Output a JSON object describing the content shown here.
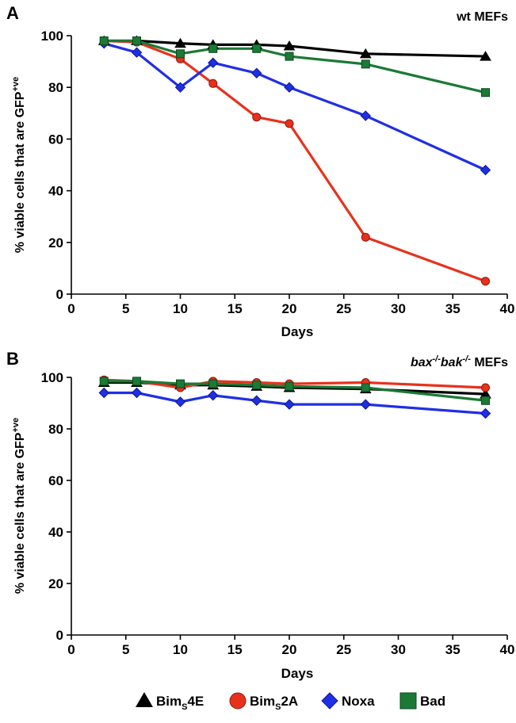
{
  "colors": {
    "black": "#000000",
    "red": "#e8311c",
    "blue": "#1f2fe6",
    "green": "#1b7a35"
  },
  "chart_data": [
    {
      "type": "line",
      "panel_letter": "A",
      "title": "wt MEFs",
      "xlabel": "Days",
      "ylabel": {
        "main": "% viable cells that are GFP",
        "superscript": "+ve"
      },
      "xlim": [
        0,
        40
      ],
      "ylim": [
        0,
        100
      ],
      "xticks": [
        0,
        5,
        10,
        15,
        20,
        25,
        30,
        35,
        40
      ],
      "yticks": [
        0,
        20,
        40,
        60,
        80,
        100
      ],
      "grid": false,
      "x": [
        3,
        6,
        10,
        13,
        17,
        20,
        27,
        38
      ],
      "series": [
        {
          "name": "Bim4E",
          "color": "#000000",
          "marker": "triangle",
          "values": [
            98,
            98,
            97,
            96.5,
            96.5,
            96,
            93,
            92
          ]
        },
        {
          "name": "Bim2A",
          "color": "#e8311c",
          "marker": "circle",
          "values": [
            98,
            97.5,
            91,
            81.5,
            68.5,
            66,
            22,
            5
          ]
        },
        {
          "name": "Noxa",
          "color": "#1f2fe6",
          "marker": "diamond",
          "values": [
            97,
            93.5,
            80,
            89.5,
            85.5,
            80,
            69,
            48
          ]
        },
        {
          "name": "Bad",
          "color": "#1b7a35",
          "marker": "square",
          "values": [
            98,
            98,
            93,
            95,
            95,
            92,
            89,
            78
          ]
        }
      ]
    },
    {
      "type": "line",
      "panel_letter": "B",
      "title": {
        "bax": "bax",
        "bax_sup": "-/-",
        "bak": "bak",
        "bak_sup": "-/-",
        "rest": " MEFs"
      },
      "xlabel": "Days",
      "ylabel": {
        "main": "% viable cells that are GFP",
        "superscript": "+ve"
      },
      "xlim": [
        0,
        40
      ],
      "ylim": [
        0,
        100
      ],
      "xticks": [
        0,
        5,
        10,
        15,
        20,
        25,
        30,
        35,
        40
      ],
      "yticks": [
        0,
        20,
        40,
        60,
        80,
        100
      ],
      "grid": false,
      "x": [
        3,
        6,
        10,
        13,
        17,
        20,
        27,
        38
      ],
      "series": [
        {
          "name": "Bim4E",
          "color": "#000000",
          "marker": "triangle",
          "values": [
            98,
            98,
            97,
            97,
            96.5,
            96,
            95.5,
            93.5
          ]
        },
        {
          "name": "Bim2A",
          "color": "#e8311c",
          "marker": "circle",
          "values": [
            99,
            98.5,
            96,
            98.5,
            98,
            97.5,
            98,
            96
          ]
        },
        {
          "name": "Noxa",
          "color": "#1f2fe6",
          "marker": "diamond",
          "values": [
            94,
            94,
            90.5,
            93,
            91,
            89.5,
            89.5,
            86
          ]
        },
        {
          "name": "Bad",
          "color": "#1b7a35",
          "marker": "square",
          "values": [
            98.5,
            98.5,
            97.5,
            97.5,
            97,
            96.5,
            96,
            91
          ]
        }
      ]
    }
  ],
  "legend": {
    "placement": "bottom",
    "items": [
      {
        "marker": "triangle",
        "color": "#000000",
        "prefix": "Bim",
        "sub": "S",
        "suffix": "4E"
      },
      {
        "marker": "circle",
        "color": "#e8311c",
        "prefix": "Bim",
        "sub": "S",
        "suffix": "2A"
      },
      {
        "marker": "diamond",
        "color": "#1f2fe6",
        "prefix": "Noxa",
        "sub": "",
        "suffix": ""
      },
      {
        "marker": "square",
        "color": "#1b7a35",
        "prefix": "Bad",
        "sub": "",
        "suffix": ""
      }
    ]
  }
}
